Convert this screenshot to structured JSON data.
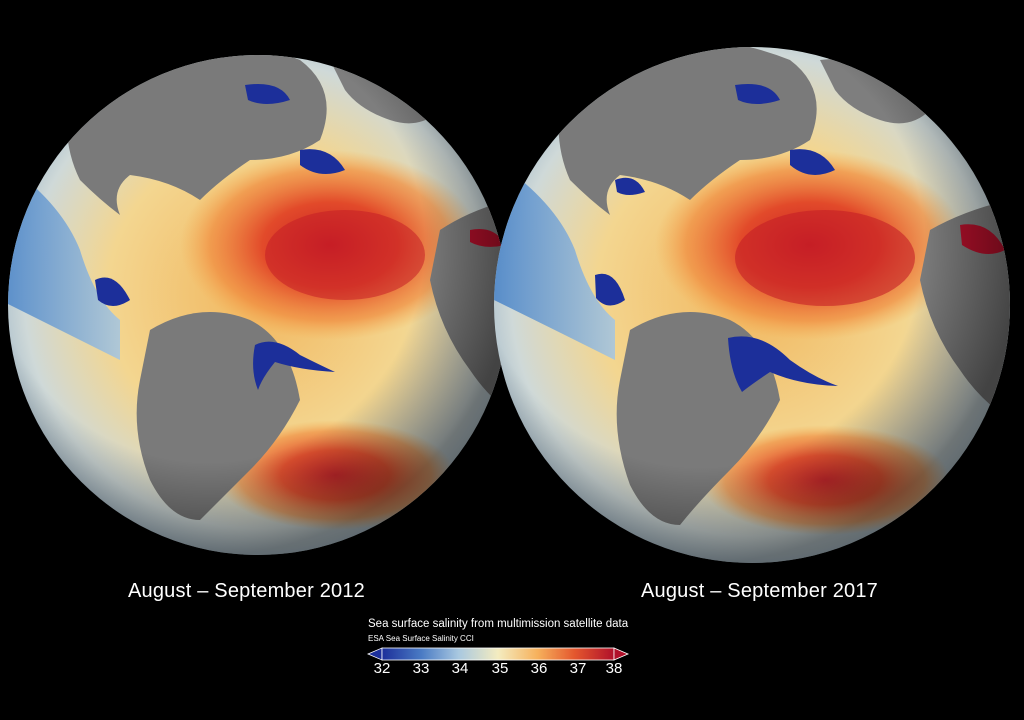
{
  "left_globe": {
    "caption": "August – September 2012"
  },
  "right_globe": {
    "caption": "August – September 2017"
  },
  "legend": {
    "title": "Sea surface salinity from multimission satellite data",
    "subtitle": "ESA Sea Surface Salinity CCI",
    "min": 32,
    "max": 38,
    "ticks": [
      "32",
      "33",
      "34",
      "35",
      "36",
      "37",
      "38"
    ],
    "colors": [
      "#1c2f9a",
      "#4a7bc4",
      "#a9c8e0",
      "#f4ecc0",
      "#f6b15c",
      "#e4572e",
      "#b0102a"
    ]
  },
  "colors": {
    "background": "#000000",
    "land": "#7a7a7a",
    "low_salinity": "#1c2f9a",
    "high_salinity": "#c6202c"
  }
}
